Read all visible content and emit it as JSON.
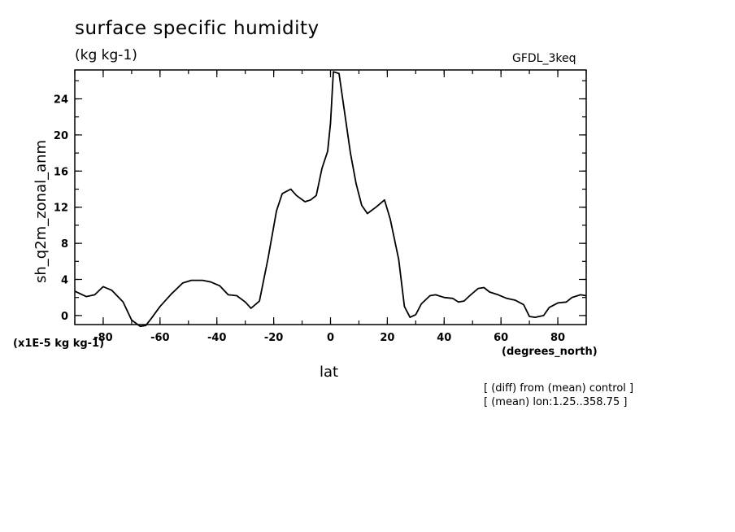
{
  "header": {
    "title": "surface specific humidity",
    "units": "(kg kg-1)",
    "model": "GFDL_3keq"
  },
  "axes": {
    "scale_note": "(x1E-5 kg kg-1)",
    "x_units": "(degrees_north)"
  },
  "notes": {
    "line1": "[ (diff) from (mean) control ]",
    "line2": "[ (mean) lon:1.25..358.75 ]"
  },
  "chart_data": {
    "type": "line",
    "title": "surface specific humidity",
    "xlabel": "lat",
    "ylabel": "sh_q2m_zonal_anm",
    "xlim": [
      -90,
      90
    ],
    "ylim": [
      -1,
      27.2
    ],
    "x_ticks": [
      -80,
      -60,
      -40,
      -20,
      0,
      20,
      40,
      60,
      80
    ],
    "y_ticks": [
      0,
      4,
      8,
      12,
      16,
      20,
      24
    ],
    "grid": false,
    "series": [
      {
        "x": [
          -90,
          -86,
          -83,
          -80,
          -77,
          -73,
          -70,
          -67,
          -65,
          -63,
          -60,
          -56,
          -52,
          -49,
          -45,
          -42,
          -39,
          -36,
          -33,
          -30,
          -28,
          -25,
          -22,
          -19,
          -17,
          -14,
          -12,
          -9,
          -7,
          -5,
          -3,
          -1,
          0,
          1,
          3,
          5,
          7,
          9,
          11,
          13,
          16,
          19,
          21,
          24,
          26,
          28,
          30,
          32,
          35,
          37,
          40,
          43,
          45,
          47,
          49,
          52,
          54,
          56,
          59,
          62,
          65,
          68,
          70,
          72,
          75,
          77,
          80,
          83,
          85,
          88,
          90
        ],
        "y": [
          2.7,
          2.1,
          2.3,
          3.2,
          2.8,
          1.5,
          -0.5,
          -1.2,
          -1.1,
          -0.3,
          1.0,
          2.4,
          3.6,
          3.9,
          3.9,
          3.7,
          3.3,
          2.3,
          2.2,
          1.5,
          0.8,
          1.6,
          6.3,
          11.6,
          13.5,
          14.0,
          13.3,
          12.6,
          12.8,
          13.3,
          16.3,
          18.2,
          21.3,
          27.0,
          26.8,
          22.4,
          18.0,
          14.6,
          12.2,
          11.3,
          12.0,
          12.8,
          10.7,
          6.2,
          1.0,
          -0.2,
          0.1,
          1.3,
          2.2,
          2.3,
          2.0,
          1.9,
          1.5,
          1.6,
          2.2,
          3.0,
          3.1,
          2.6,
          2.3,
          1.9,
          1.7,
          1.2,
          -0.1,
          -0.2,
          0.0,
          0.9,
          1.4,
          1.5,
          2.0,
          2.3,
          2.2
        ]
      }
    ]
  }
}
